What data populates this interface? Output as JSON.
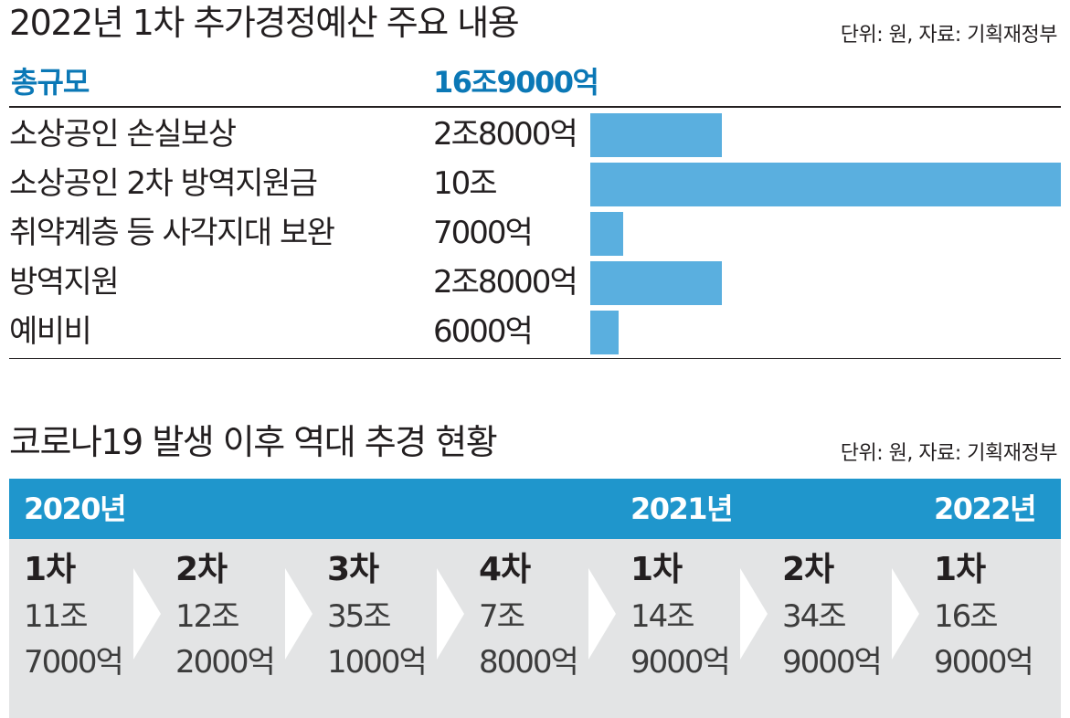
{
  "chart_data": [
    {
      "type": "bar",
      "title": "2022년 1차 추가경정예산 주요 내용",
      "unit_note": "단위: 원, 자료: 기획재정부",
      "total_label": "총규모",
      "total_value": "16조9000억",
      "categories": [
        "소상공인 손실보상",
        "소상공인 2차 방역지원금",
        "취약계층 등 사각지대 보완",
        "방역지원",
        "예비비"
      ],
      "value_labels": [
        "2조8000억",
        "10조",
        "7000억",
        "2조8000억",
        "6000억"
      ],
      "values": [
        28000,
        100000,
        7000,
        28000,
        6000
      ],
      "value_unit": "억 원",
      "xlim": [
        0,
        100000
      ]
    },
    {
      "type": "table",
      "title": "코로나19 발생 이후 역대 추경 현황",
      "unit_note": "단위: 원, 자료: 기획재정부",
      "years": [
        "2020년",
        "2021년",
        "2022년"
      ],
      "rounds": [
        {
          "label": "1차",
          "amount": [
            "11조",
            "7000억"
          ],
          "value": 117000,
          "year": "2020년"
        },
        {
          "label": "2차",
          "amount": [
            "12조",
            "2000억"
          ],
          "value": 122000,
          "year": "2020년"
        },
        {
          "label": "3차",
          "amount": [
            "35조",
            "1000억"
          ],
          "value": 351000,
          "year": "2020년"
        },
        {
          "label": "4차",
          "amount": [
            "7조",
            "8000억"
          ],
          "value": 78000,
          "year": "2020년"
        },
        {
          "label": "1차",
          "amount": [
            "14조",
            "9000억"
          ],
          "value": 149000,
          "year": "2021년"
        },
        {
          "label": "2차",
          "amount": [
            "34조",
            "9000억"
          ],
          "value": 349000,
          "year": "2021년"
        },
        {
          "label": "1차",
          "amount": [
            "16조",
            "9000억"
          ],
          "value": 169000,
          "year": "2022년"
        }
      ]
    }
  ],
  "colors": {
    "accent_blue": "#0b78b6",
    "bar_blue": "#5aafdf",
    "band_blue": "#1f96cc",
    "panel_gray": "#e3e4e5",
    "text": "#231f20"
  }
}
